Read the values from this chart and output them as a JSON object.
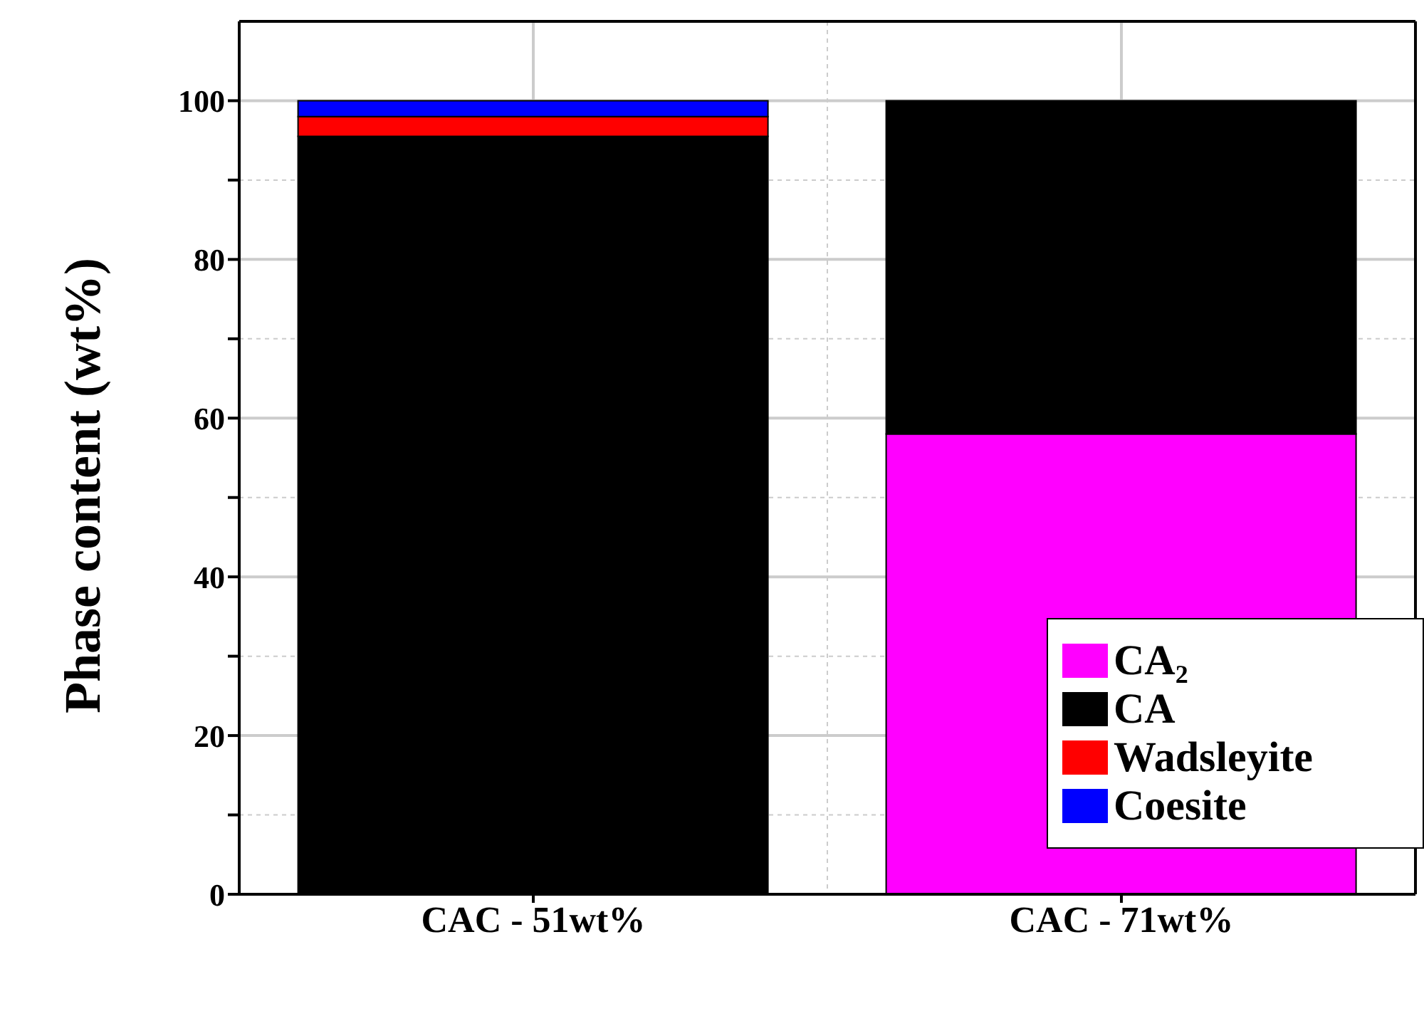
{
  "chart_data": {
    "type": "bar",
    "stacked": true,
    "ylabel": "Phase content (wt%)",
    "categories": [
      "CAC - 51wt%",
      "CAC - 71wt%"
    ],
    "series": [
      {
        "name": "CA₂",
        "color": "#ff00ff",
        "values": [
          null,
          58
        ]
      },
      {
        "name": "CA",
        "color": "#000000",
        "values": [
          95.5,
          42
        ]
      },
      {
        "name": "Wadsleyite",
        "color": "#ff0000",
        "values": [
          2.5,
          null
        ]
      },
      {
        "name": "Coesite",
        "color": "#0000ff",
        "values": [
          2,
          null
        ]
      }
    ],
    "ylim": [
      0,
      110
    ],
    "yticks": [
      0,
      {
        "value": 10,
        "label": null
      },
      20,
      {
        "value": 30,
        "label": null
      },
      40,
      {
        "value": 50,
        "label": null
      },
      60,
      {
        "value": 70,
        "label": null
      },
      80,
      {
        "value": 90,
        "label": null
      },
      100
    ],
    "grid": true,
    "legend": "bottom right"
  }
}
